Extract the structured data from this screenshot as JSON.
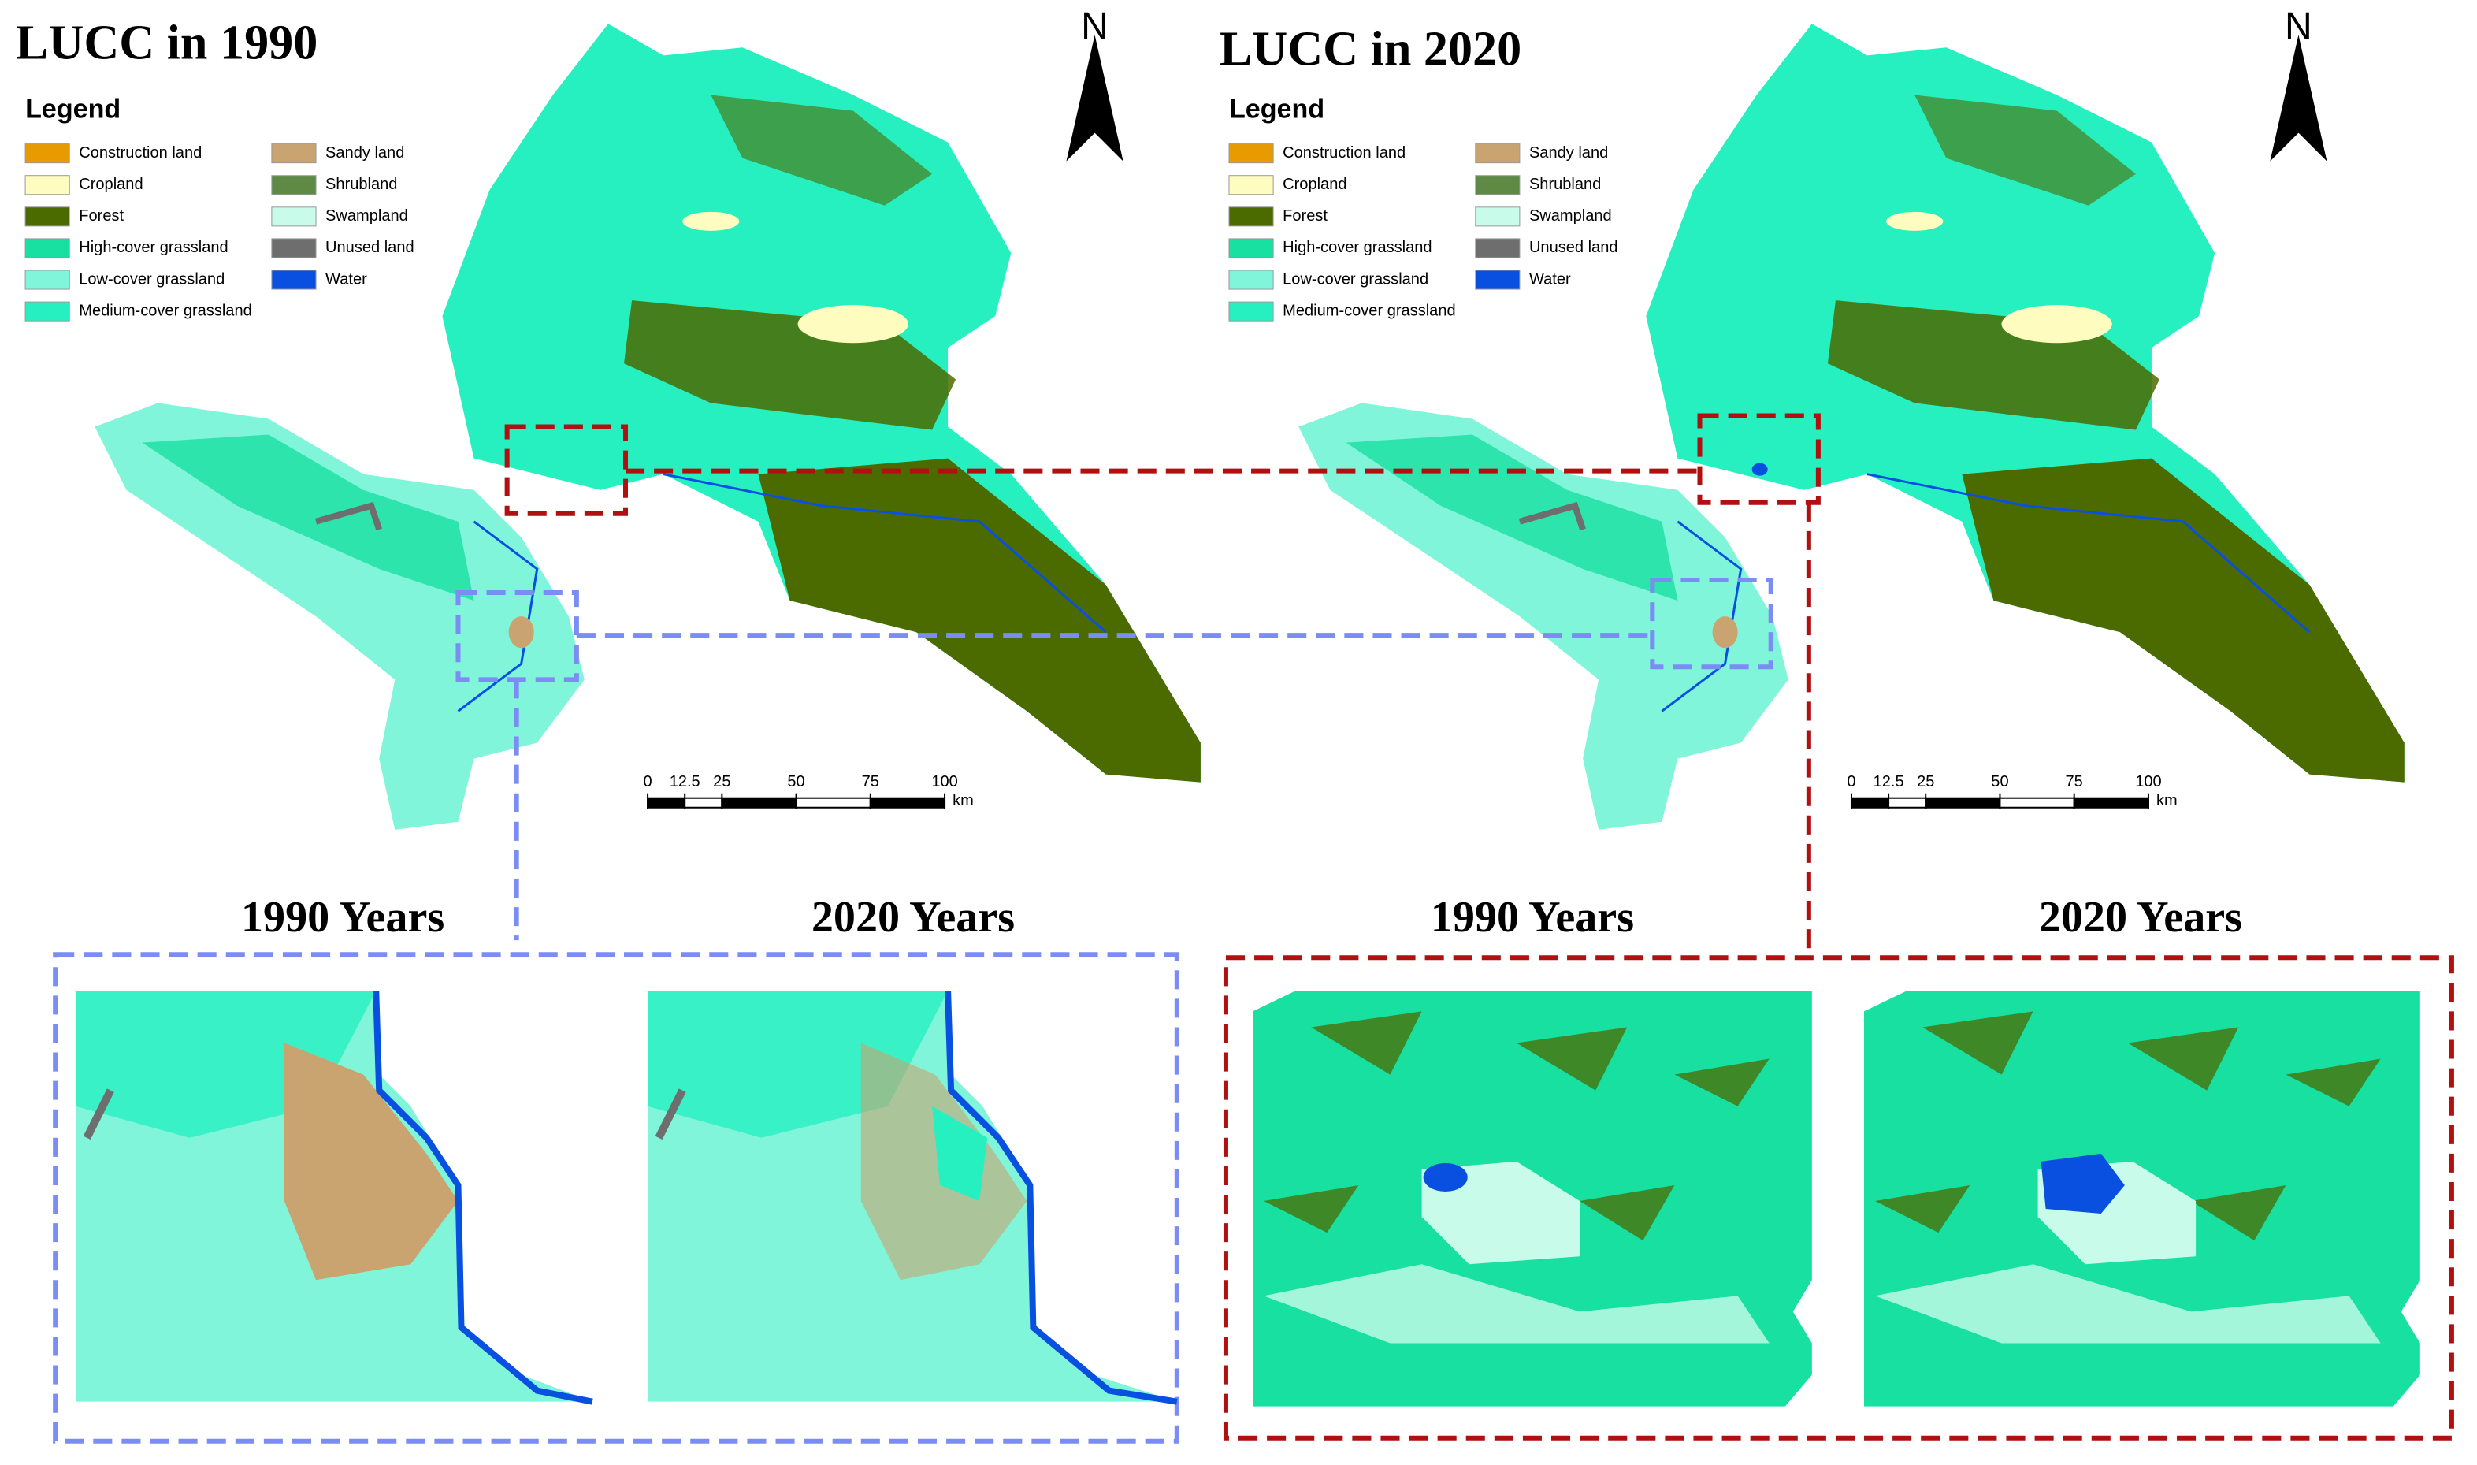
{
  "maps": [
    {
      "title": "LUCC in 1990",
      "legend": {
        "title": "Legend",
        "items": [
          {
            "label": "Construction land",
            "color": "#e89b00"
          },
          {
            "label": "Cropland",
            "color": "#fffcc0"
          },
          {
            "label": "Forest",
            "color": "#4b6b00"
          },
          {
            "label": "High-cover grassland",
            "color": "#18e0a0"
          },
          {
            "label": "Low-cover grassland",
            "color": "#80f5da"
          },
          {
            "label": "Medium-cover grassland",
            "color": "#26f0c0"
          },
          {
            "label": "Sandy land",
            "color": "#c9a470"
          },
          {
            "label": "Shrubland",
            "color": "#5e8a45"
          },
          {
            "label": "Swampland",
            "color": "#c8fbe9"
          },
          {
            "label": "Unused land",
            "color": "#6e6e6e"
          },
          {
            "label": "Water",
            "color": "#0a50e0"
          }
        ]
      },
      "north": "N",
      "scale_bar": {
        "ticks": [
          0,
          12.5,
          25,
          50,
          75,
          100
        ],
        "unit": "km"
      }
    },
    {
      "title": "LUCC in 2020",
      "legend": {
        "title": "Legend",
        "items": [
          {
            "label": "Construction land",
            "color": "#e89b00"
          },
          {
            "label": "Cropland",
            "color": "#fffcc0"
          },
          {
            "label": "Forest",
            "color": "#4b6b00"
          },
          {
            "label": "High-cover grassland",
            "color": "#18e0a0"
          },
          {
            "label": "Low-cover grassland",
            "color": "#80f5da"
          },
          {
            "label": "Medium-cover grassland",
            "color": "#26f0c0"
          },
          {
            "label": "Sandy land",
            "color": "#c9a470"
          },
          {
            "label": "Shrubland",
            "color": "#5e8a45"
          },
          {
            "label": "Swampland",
            "color": "#c8fbe9"
          },
          {
            "label": "Unused land",
            "color": "#6e6e6e"
          },
          {
            "label": "Water",
            "color": "#0a50e0"
          }
        ]
      },
      "north": "N",
      "scale_bar": {
        "ticks": [
          0,
          12.5,
          25,
          50,
          75,
          100
        ],
        "unit": "km"
      }
    }
  ],
  "zooms": [
    {
      "panels": [
        "1990 Years",
        "2020 Years"
      ]
    },
    {
      "panels": [
        "1990 Years",
        "2020 Years"
      ]
    }
  ]
}
